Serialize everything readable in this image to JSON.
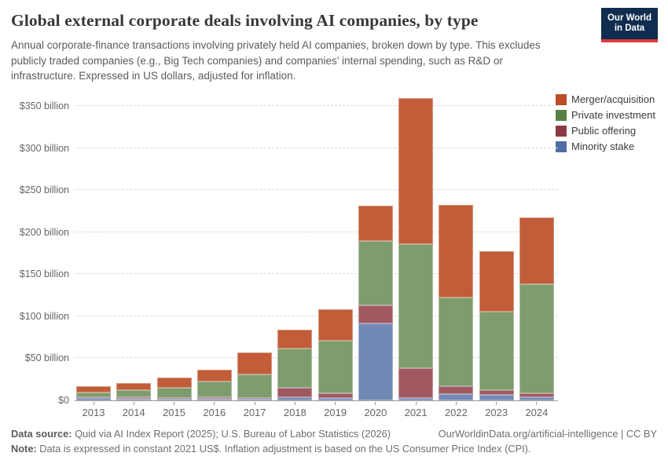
{
  "header": {
    "title": "Global external corporate deals involving AI companies, by type",
    "subtitle": "Annual corporate-finance transactions involving privately held AI companies, broken down by type. This excludes publicly traded companies (e.g., Big Tech companies) and companies’ internal spending, such as R&D or infrastructure. Expressed in US dollars, adjusted for inflation.",
    "logo_line1": "Our World",
    "logo_line2": "in Data",
    "logo_colors": {
      "background": "#102d4f",
      "underline": "#e0393e",
      "text": "#ffffff"
    }
  },
  "chart_data": {
    "type": "bar",
    "stacked": true,
    "unit": "US$ billion (constant 2021 US$)",
    "grid": "horizontal dashed",
    "legend_position": "right",
    "ylim": [
      0,
      350
    ],
    "yticks": [
      {
        "value": 0,
        "label": "$0"
      },
      {
        "value": 50,
        "label": "$50 billion"
      },
      {
        "value": 100,
        "label": "$100 billion"
      },
      {
        "value": 150,
        "label": "$150 billion"
      },
      {
        "value": 200,
        "label": "$200 billion"
      },
      {
        "value": 250,
        "label": "$250 billion"
      },
      {
        "value": 300,
        "label": "$300 billion"
      },
      {
        "value": 350,
        "label": "$350 billion"
      }
    ],
    "categories": [
      "2013",
      "2014",
      "2015",
      "2016",
      "2017",
      "2018",
      "2019",
      "2020",
      "2021",
      "2022",
      "2023",
      "2024"
    ],
    "series": [
      {
        "name": "Minority stake",
        "bar_color": "#7289b5",
        "legend_color": "#4e6da0",
        "values": [
          2.73,
          1.73,
          1.57,
          2.33,
          1.78,
          3.55,
          2.59,
          91.52,
          2.49,
          7.56,
          6.66,
          3.9
        ]
      },
      {
        "name": "Public offering",
        "bar_color": "#a05961",
        "legend_color": "#8e3a46",
        "values": [
          1.08,
          1.99,
          1.38,
          1.83,
          1.35,
          11.2,
          5.64,
          21.2,
          36.26,
          9.39,
          5.86,
          4.4
        ]
      },
      {
        "name": "Private investment",
        "bar_color": "#7e9c6e",
        "legend_color": "#588044",
        "values": [
          5.34,
          8.4,
          11.92,
          18.33,
          27.76,
          47.1,
          62.35,
          77.17,
          146.74,
          105.31,
          92.74,
          129.7
        ]
      },
      {
        "name": "Merger/acquisition",
        "bar_color": "#c15d39",
        "legend_color": "#be4b28",
        "values": [
          7.32,
          8.26,
          12.49,
          13.59,
          26.12,
          21.95,
          37.53,
          41.92,
          173.44,
          110.11,
          72.21,
          79.8
        ]
      }
    ],
    "legend_order_top_to_bottom": [
      "Merger/acquisition",
      "Private investment",
      "Public offering",
      "Minority stake"
    ]
  },
  "footer": {
    "source_label": "Data source:",
    "source_text": " Quid via AI Index Report (2025); U.S. Bureau of Labor Statistics (2026)",
    "url_text": "OurWorldinData.org/artificial-intelligence | CC BY",
    "note_label": "Note:",
    "note_text": " Data is expressed in constant 2021 US$. Inflation adjustment is based on the US Consumer Price Index (CPI)."
  }
}
